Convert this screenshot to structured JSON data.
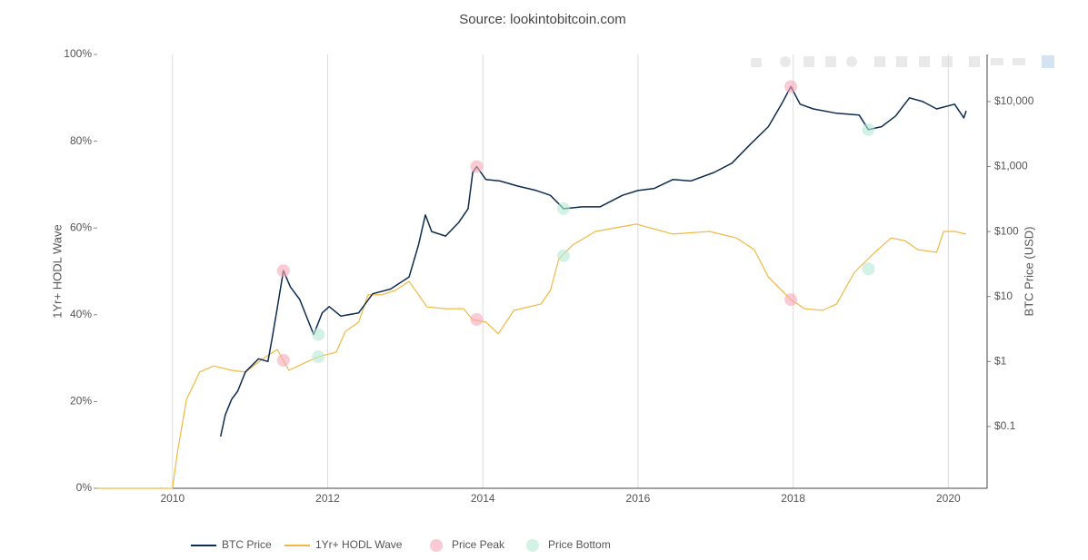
{
  "chart_data": {
    "type": "line",
    "title": "Source: lookintobitcoin.com",
    "y_label": "1Yr+ HODL Wave",
    "y2_label": "BTC Price (USD)",
    "xlim": [
      2009.03,
      2020.5
    ],
    "xticks": [
      2010,
      2012,
      2014,
      2016,
      2018,
      2020
    ],
    "ylim": [
      0,
      100
    ],
    "yticks": [
      {
        "value": 0,
        "label": "0%"
      },
      {
        "value": 20,
        "label": "20%"
      },
      {
        "value": 40,
        "label": "40%"
      },
      {
        "value": 60,
        "label": "60%"
      },
      {
        "value": 80,
        "label": "80%"
      },
      {
        "value": 100,
        "label": "100%"
      }
    ],
    "y2lim": [
      0.0112,
      53000
    ],
    "y2_log": true,
    "y2ticks": [
      {
        "value": 0.1,
        "label": "$0.1"
      },
      {
        "value": 1,
        "label": "$1"
      },
      {
        "value": 10,
        "label": "$10"
      },
      {
        "value": 100,
        "label": "$100"
      },
      {
        "value": 1000,
        "label": "$1,000"
      },
      {
        "value": 10000,
        "label": "$10,000"
      }
    ],
    "grid": true,
    "legend": "bottom",
    "series": [
      {
        "name": "BTC Price",
        "type": "line",
        "axis": "y2",
        "color": "#0e2c4e",
        "x": [
          2010.62,
          2010.68,
          2010.76,
          2010.84,
          2010.94,
          2011.11,
          2011.23,
          2011.29,
          2011.35,
          2011.43,
          2011.52,
          2011.64,
          2011.82,
          2011.93,
          2012.02,
          2012.17,
          2012.4,
          2012.58,
          2012.81,
          2013.05,
          2013.17,
          2013.26,
          2013.34,
          2013.52,
          2013.69,
          2013.81,
          2013.87,
          2013.92,
          2014.04,
          2014.22,
          2014.45,
          2014.69,
          2014.87,
          2015.04,
          2015.28,
          2015.51,
          2015.8,
          2016.0,
          2016.21,
          2016.45,
          2016.68,
          2016.98,
          2017.21,
          2017.44,
          2017.68,
          2017.85,
          2017.97,
          2018.09,
          2018.26,
          2018.56,
          2018.85,
          2018.97,
          2019.14,
          2019.32,
          2019.5,
          2019.67,
          2019.85,
          2020.08,
          2020.2,
          2020.23
        ],
        "values": [
          0.07,
          0.15,
          0.26,
          0.35,
          0.69,
          1.1,
          1.0,
          2.5,
          6.6,
          25,
          14,
          9,
          2.6,
          5.6,
          7,
          5,
          5.6,
          11,
          13,
          20,
          62,
          180,
          100,
          85,
          138,
          225,
          810,
          1000,
          630,
          600,
          500,
          427,
          360,
          225,
          240,
          240,
          360,
          427,
          460,
          630,
          600,
          810,
          1125,
          2150,
          4100,
          9100,
          17000,
          9100,
          7700,
          6600,
          6200,
          3700,
          4100,
          6000,
          11400,
          10000,
          7700,
          9100,
          5600,
          7200
        ]
      },
      {
        "name": "1Yr+ HODL Wave",
        "type": "line",
        "axis": "y",
        "color": "#f0b942",
        "x": [
          2009.03,
          2010.0,
          2010.06,
          2010.18,
          2010.35,
          2010.53,
          2010.76,
          2010.94,
          2011.17,
          2011.35,
          2011.5,
          2011.7,
          2011.88,
          2012.11,
          2012.23,
          2012.4,
          2012.52,
          2012.7,
          2012.87,
          2013.05,
          2013.28,
          2013.52,
          2013.75,
          2013.87,
          2014.04,
          2014.2,
          2014.4,
          2014.75,
          2014.87,
          2014.98,
          2015.16,
          2015.45,
          2015.98,
          2016.45,
          2016.92,
          2017.27,
          2017.5,
          2017.68,
          2017.97,
          2018.15,
          2018.38,
          2018.56,
          2018.79,
          2019.03,
          2019.26,
          2019.44,
          2019.61,
          2019.85,
          2019.94,
          2020.08,
          2020.23
        ],
        "values": [
          0,
          0,
          7.9,
          20.5,
          26.8,
          28.2,
          27.2,
          26.8,
          29.9,
          32,
          27.2,
          28.9,
          30.3,
          31.4,
          36.2,
          38.3,
          44.6,
          44.6,
          45.6,
          47.7,
          41.8,
          41.4,
          41.4,
          38.9,
          38.3,
          35.6,
          41,
          42.5,
          45.6,
          52.9,
          56.1,
          59.2,
          60.9,
          58.6,
          59.2,
          57.7,
          55,
          48.7,
          43.5,
          41.4,
          41,
          42.5,
          49.8,
          54,
          57.7,
          57.1,
          55,
          54.4,
          59.2,
          59.2,
          58.6
        ]
      },
      {
        "name": "Price Peak",
        "type": "scatter",
        "color": "#f7a8b8",
        "x": [
          2011.43,
          2013.92,
          2017.97
        ],
        "values": [
          29.5,
          38.9,
          43.5
        ],
        "y2_values": [
          25,
          1000,
          17000
        ]
      },
      {
        "name": "Price Bottom",
        "type": "scatter",
        "color": "#b5ead5",
        "x": [
          2011.88,
          2015.04,
          2018.97
        ],
        "values": [
          30.3,
          53.6,
          50.6
        ],
        "y2_values": [
          2.6,
          225,
          3700
        ]
      }
    ]
  }
}
